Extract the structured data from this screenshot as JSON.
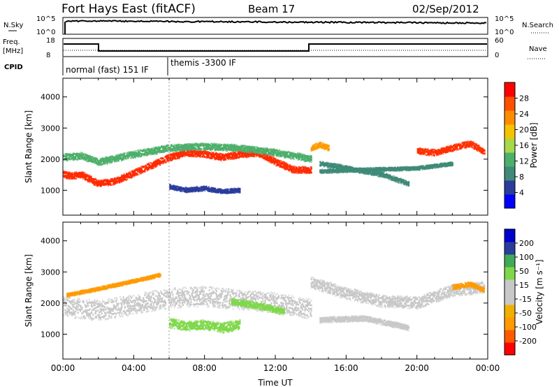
{
  "header": {
    "title": "Fort Hays East (fitACF)",
    "beam": "Beam 17",
    "date": "02/Sep/2012"
  },
  "status_panels": {
    "nsky_label": "N.Sky",
    "nsky_ticks": [
      "10^5",
      "10^0"
    ],
    "nsearch_label": "N.Search",
    "nsearch_ticks": [
      "10^5",
      "10^0"
    ],
    "freq_label": "Freq.",
    "freq_unit": "[MHz]",
    "freq_ticks": [
      "18",
      "8"
    ],
    "nave_label": "Nave",
    "nave_ticks": [
      "60",
      "0"
    ],
    "cpid_label": "CPID",
    "cpid_modes": [
      "normal (fast) 151 IF",
      "themis -3300 IF"
    ]
  },
  "chart_data": [
    {
      "type": "heatmap",
      "name": "power",
      "ylabel": "Slant Range [km]",
      "xlim": [
        0,
        24
      ],
      "ylim": [
        200,
        4600
      ],
      "y_ticks": [
        1000,
        2000,
        3000,
        4000
      ],
      "colorbar": {
        "label": "Power [dB]",
        "ticks": [
          "28",
          "24",
          "20",
          "16",
          "12",
          "8",
          "4"
        ],
        "colors": [
          "#0000ff",
          "#2a3d9c",
          "#3f8a78",
          "#4caf6a",
          "#a8d84a",
          "#f5c400",
          "#ff8c00",
          "#ff5000",
          "#ff0000"
        ]
      },
      "bands": [
        {
          "level": "strong",
          "color": "#ff2a00",
          "t": [
            0,
            0.5,
            1.0,
            2.0,
            3.0,
            4.0,
            5.0,
            6.0,
            7.0,
            8.0,
            9.0,
            10.0,
            11.0,
            12.0,
            13.0,
            14.0
          ],
          "range": [
            1500,
            1450,
            1500,
            1200,
            1300,
            1550,
            1800,
            2050,
            2200,
            2150,
            2050,
            2150,
            2200,
            1900,
            1650,
            1650
          ],
          "width": 220
        },
        {
          "level": "medium",
          "color": "#4caf6a",
          "t": [
            0,
            1.0,
            2.0,
            4.0,
            6.0,
            8.0,
            10.0,
            12.0,
            14.0
          ],
          "range": [
            2050,
            2100,
            1900,
            2150,
            2350,
            2400,
            2350,
            2200,
            2000
          ],
          "width": 220
        },
        {
          "level": "strong",
          "color": "#ff3000",
          "t": [
            20.0,
            21.0,
            22.0,
            23.0,
            23.8
          ],
          "range": [
            2250,
            2200,
            2350,
            2500,
            2200
          ],
          "width": 200
        },
        {
          "level": "medium",
          "color": "#ff9a00",
          "t": [
            14.0,
            14.5,
            15.0
          ],
          "range": [
            2350,
            2450,
            2350
          ],
          "width": 180
        },
        {
          "level": "weak",
          "color": "#2a3d9c",
          "t": [
            6.0,
            7.0,
            8.0,
            9.0,
            10.0
          ],
          "range": [
            1100,
            1000,
            1050,
            950,
            1000
          ],
          "width": 150
        },
        {
          "level": "weak",
          "color": "#3f8a78",
          "t": [
            14.5,
            16.0,
            18.0,
            19.5
          ],
          "range": [
            1850,
            1700,
            1500,
            1200
          ],
          "width": 160
        },
        {
          "level": "weak",
          "color": "#3f8a78",
          "t": [
            14.5,
            17.0,
            20.0,
            22.0
          ],
          "range": [
            1600,
            1650,
            1700,
            1850
          ],
          "width": 120
        }
      ]
    },
    {
      "type": "heatmap",
      "name": "velocity",
      "ylabel": "Slant Range [km]",
      "xlabel": "Time UT",
      "xlim": [
        0,
        24
      ],
      "ylim": [
        200,
        4600
      ],
      "y_ticks": [
        1000,
        2000,
        3000,
        4000
      ],
      "x_ticks": [
        "00:00",
        "04:00",
        "08:00",
        "12:00",
        "16:00",
        "20:00",
        "00:00"
      ],
      "colorbar": {
        "label": "Velocity [m s⁻¹]",
        "ticks": [
          "200",
          "100",
          "50",
          "15",
          "-15",
          "-50",
          "-100",
          "-200"
        ],
        "colors": [
          "#ff0000",
          "#ff5a00",
          "#ff9a00",
          "#f0b000",
          "#c8c8c8",
          "#c8c8c8",
          "#7fd84a",
          "#3faa58",
          "#2a3d9c",
          "#0000cc"
        ]
      },
      "bands": [
        {
          "level": "ground",
          "color": "#c8c8c8",
          "t": [
            0,
            1.0,
            2.0,
            4.0,
            6.0,
            8.0,
            10.0,
            12.0,
            14.0
          ],
          "range": [
            1900,
            1800,
            1750,
            1950,
            2150,
            2200,
            2100,
            2000,
            1800
          ],
          "width": 650
        },
        {
          "level": "ground",
          "color": "#c8c8c8",
          "t": [
            14.0,
            16.0,
            18.0,
            20.0,
            22.0,
            23.8
          ],
          "range": [
            2650,
            2300,
            2050,
            2000,
            2400,
            2500
          ],
          "width": 380
        },
        {
          "level": "ion",
          "color": "#7fd84a",
          "t": [
            6.0,
            7.0,
            8.0,
            9.0,
            10.0
          ],
          "range": [
            1350,
            1250,
            1300,
            1200,
            1300
          ],
          "width": 320
        },
        {
          "level": "ion",
          "color": "#7fd84a",
          "t": [
            9.5,
            10.5,
            11.5,
            12.5
          ],
          "range": [
            2050,
            1950,
            1850,
            1700
          ],
          "width": 220
        },
        {
          "level": "neg",
          "color": "#ff9a00",
          "t": [
            0.2,
            2.0,
            4.0,
            5.5
          ],
          "range": [
            2250,
            2450,
            2700,
            2900
          ],
          "width": 120
        },
        {
          "level": "ground",
          "color": "#c8c8c8",
          "t": [
            14.5,
            17.0,
            19.5
          ],
          "range": [
            1450,
            1500,
            1200
          ],
          "width": 180
        },
        {
          "level": "pos",
          "color": "#ff9a00",
          "t": [
            22.0,
            23.0,
            23.8
          ],
          "range": [
            2500,
            2600,
            2400
          ],
          "width": 160
        }
      ]
    }
  ]
}
